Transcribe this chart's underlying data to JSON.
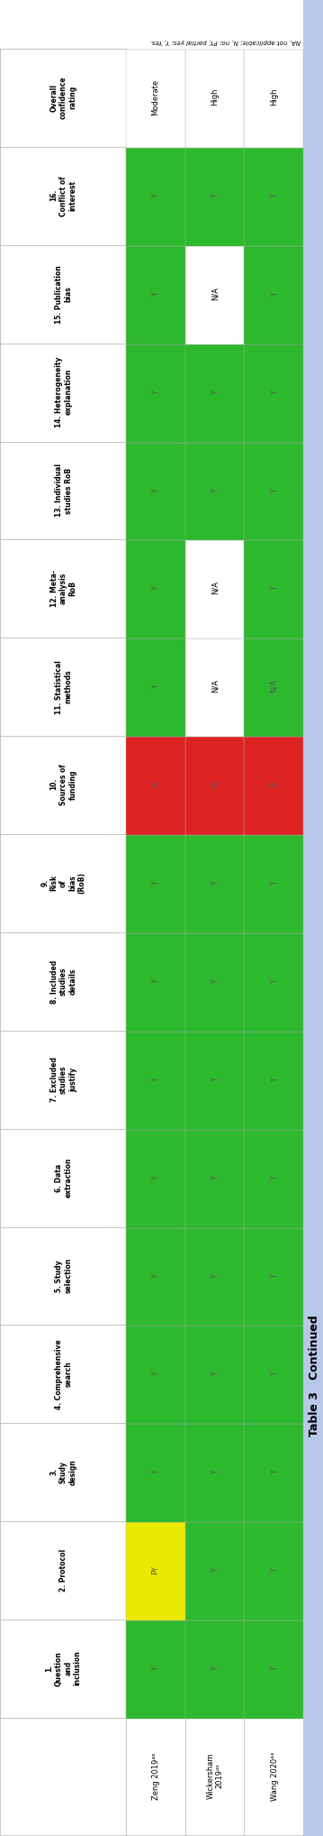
{
  "title": "Table 3   Continued",
  "footnote": "NA, not applicable; N, no; PY, partial yes; Y, Yes.",
  "studies": [
    "Wang 2020⁴⁴",
    "Wickersham\n2019⁴⁵",
    "Zeng 2019⁴⁶"
  ],
  "col_headers": [
    "1.\nQuestion\nand\ninclusion",
    "2. Protocol",
    "3.\nStudy\ndesign",
    "4. Comprehensive\nsearch",
    "5. Study\nselection",
    "6. Data\nextraction",
    "7. Excluded\nstudies\njustify",
    "8. Included\nstudies\ndetails",
    "9.\nRisk\nof\nbias\n(RoB)",
    "10.\nSources of\nfunding",
    "11. Statistical\nmethods",
    "12. Meta-\nanalysis\nRoB",
    "13. Individual\nstudies RoB",
    "14. Heterogeneity\nexplanation",
    "15. Publication\nbias",
    "16.\nConflict of\ninterest",
    "Overall\nconfidence\nrating"
  ],
  "cell_values": [
    [
      "Y",
      "Y",
      "Y",
      "Y",
      "Y",
      "Y",
      "Y",
      "Y",
      "Y",
      "N",
      "N/A",
      "Y",
      "Y",
      "Y",
      "Y",
      "Y",
      "High"
    ],
    [
      "Y",
      "Y",
      "Y",
      "Y",
      "Y",
      "Y",
      "Y",
      "Y",
      "Y",
      "N",
      "N/A",
      "N/A",
      "Y",
      "Y",
      "N/A",
      "Y",
      "High"
    ],
    [
      "Y",
      "PY",
      "Y",
      "Y",
      "Y",
      "Y",
      "Y",
      "Y",
      "Y",
      "N",
      "Y",
      "Y",
      "Y",
      "Y",
      "Y",
      "Y",
      "Moderate"
    ]
  ],
  "cell_colors": [
    [
      "#2db92d",
      "#2db92d",
      "#2db92d",
      "#2db92d",
      "#2db92d",
      "#2db92d",
      "#2db92d",
      "#2db92d",
      "#2db92d",
      "#dd2222",
      "#2db92d",
      "#2db92d",
      "#2db92d",
      "#2db92d",
      "#2db92d",
      "#2db92d",
      "#ffffff"
    ],
    [
      "#2db92d",
      "#2db92d",
      "#2db92d",
      "#2db92d",
      "#2db92d",
      "#2db92d",
      "#2db92d",
      "#2db92d",
      "#2db92d",
      "#dd2222",
      "#ffffff",
      "#ffffff",
      "#2db92d",
      "#2db92d",
      "#ffffff",
      "#2db92d",
      "#ffffff"
    ],
    [
      "#2db92d",
      "#eaea00",
      "#2db92d",
      "#2db92d",
      "#2db92d",
      "#2db92d",
      "#2db92d",
      "#2db92d",
      "#2db92d",
      "#dd2222",
      "#2db92d",
      "#2db92d",
      "#2db92d",
      "#2db92d",
      "#2db92d",
      "#2db92d",
      "#ffffff"
    ]
  ],
  "sidebar_color": "#b8c8e8",
  "header_bg": "#ffffff",
  "grid_color": "#aaaaaa"
}
